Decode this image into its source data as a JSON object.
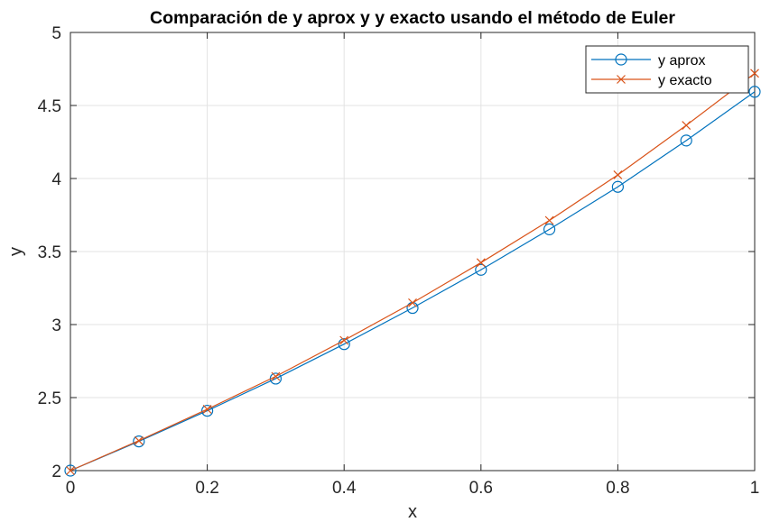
{
  "chart_data": {
    "type": "line",
    "title": "Comparación de y aprox y y exacto usando el método de Euler",
    "xlabel": "x",
    "ylabel": "y",
    "xlim": [
      0,
      1
    ],
    "ylim": [
      2,
      5
    ],
    "xticks": [
      0,
      0.2,
      0.4,
      0.6,
      0.8,
      1
    ],
    "xtick_labels": [
      "0",
      "0.2",
      "0.4",
      "0.6",
      "0.8",
      "1"
    ],
    "yticks": [
      2,
      2.5,
      3,
      3.5,
      4,
      4.5,
      5
    ],
    "ytick_labels": [
      "2",
      "2.5",
      "3",
      "3.5",
      "4",
      "4.5",
      "5"
    ],
    "grid": true,
    "legend_position": "top-right",
    "x": [
      0,
      0.1,
      0.2,
      0.3,
      0.4,
      0.5,
      0.6,
      0.7,
      0.8,
      0.9,
      1.0
    ],
    "series": [
      {
        "name": "y aprox",
        "color": "#0072BD",
        "marker": "circle",
        "values": [
          2.0,
          2.2,
          2.41,
          2.63,
          2.866,
          3.114,
          3.375,
          3.652,
          3.943,
          4.26,
          4.594
        ]
      },
      {
        "name": "y exacto",
        "color": "#D95319",
        "marker": "cross",
        "values": [
          2.0,
          2.205,
          2.42,
          2.645,
          2.892,
          3.149,
          3.424,
          3.713,
          4.025,
          4.364,
          4.72
        ]
      }
    ]
  }
}
